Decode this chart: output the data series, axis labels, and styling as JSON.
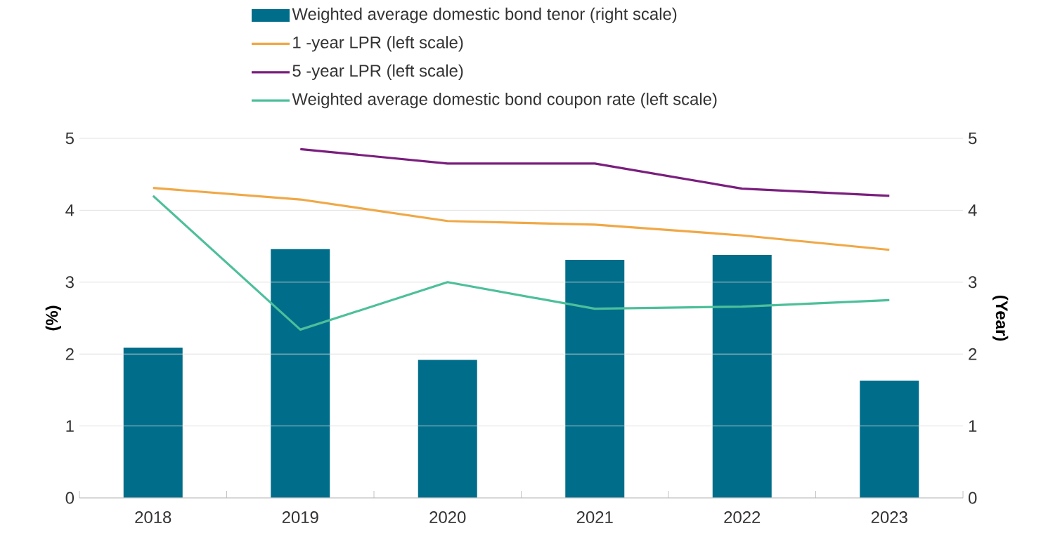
{
  "chart_data": {
    "type": "line",
    "categories": [
      "2018",
      "2019",
      "2020",
      "2021",
      "2022",
      "2023"
    ],
    "series": [
      {
        "name": "Weighted average domestic bond tenor (right scale)",
        "type": "bar",
        "axis": "y2",
        "color": "#006e8a",
        "values": [
          2.09,
          3.46,
          1.92,
          3.31,
          3.38,
          1.63
        ]
      },
      {
        "name": "1 -year LPR (left scale)",
        "color": "#f0a846",
        "values": [
          4.31,
          4.15,
          3.85,
          3.8,
          3.65,
          3.45
        ]
      },
      {
        "name": "5 -year LPR (left scale)",
        "color": "#7a1e7e",
        "values": [
          null,
          4.85,
          4.65,
          4.65,
          4.3,
          4.2
        ]
      },
      {
        "name": "Weighted average domestic bond coupon rate (left scale)",
        "color": "#4dbf9b",
        "values": [
          4.2,
          2.34,
          3.0,
          2.63,
          2.66,
          2.75
        ]
      }
    ],
    "ylabel": "(%)",
    "y2label": "(Year)",
    "ylim": [
      0,
      5
    ],
    "yticks": [
      0,
      1,
      2,
      3,
      4,
      5
    ],
    "y2lim": [
      0,
      5
    ],
    "y2ticks": [
      0,
      1,
      2,
      3,
      4,
      5
    ],
    "grid": "y",
    "legend": "top"
  }
}
